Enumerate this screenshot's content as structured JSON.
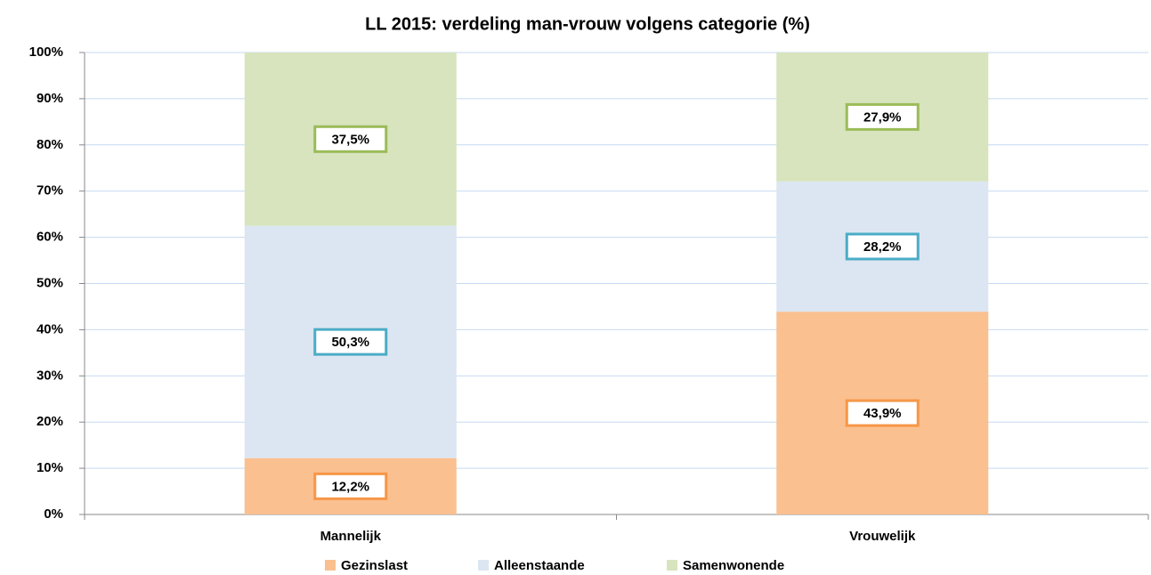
{
  "chart_data": {
    "type": "stacked_bar",
    "title": "LL 2015: verdeling man-vrouw volgens categorie (%)",
    "categories": [
      "Mannelijk",
      "Vrouwelijk"
    ],
    "series": [
      {
        "name": "Gezinslast",
        "color": "#fac090",
        "border": "#f79646",
        "values": [
          12.2,
          43.9
        ],
        "value_labels": [
          "12,2%",
          "43,9%"
        ]
      },
      {
        "name": "Alleenstaande",
        "color": "#dce6f2",
        "border": "#4bacc6",
        "values": [
          50.3,
          28.2
        ],
        "value_labels": [
          "50,3%",
          "28,2%"
        ]
      },
      {
        "name": "Samenwonende",
        "color": "#d7e4bd",
        "border": "#9bbb59",
        "values": [
          37.5,
          27.9
        ],
        "value_labels": [
          "37,5%",
          "27,9%"
        ]
      }
    ],
    "ylim": [
      0,
      100
    ],
    "yticks": [
      {
        "value": 0,
        "label": "0%"
      },
      {
        "value": 10,
        "label": "10%"
      },
      {
        "value": 20,
        "label": "20%"
      },
      {
        "value": 30,
        "label": "30%"
      },
      {
        "value": 40,
        "label": "40%"
      },
      {
        "value": 50,
        "label": "50%"
      },
      {
        "value": 60,
        "label": "60%"
      },
      {
        "value": 70,
        "label": "70%"
      },
      {
        "value": 80,
        "label": "80%"
      },
      {
        "value": 90,
        "label": "90%"
      },
      {
        "value": 100,
        "label": "100%"
      }
    ],
    "grid": true,
    "legend": "bottom"
  }
}
